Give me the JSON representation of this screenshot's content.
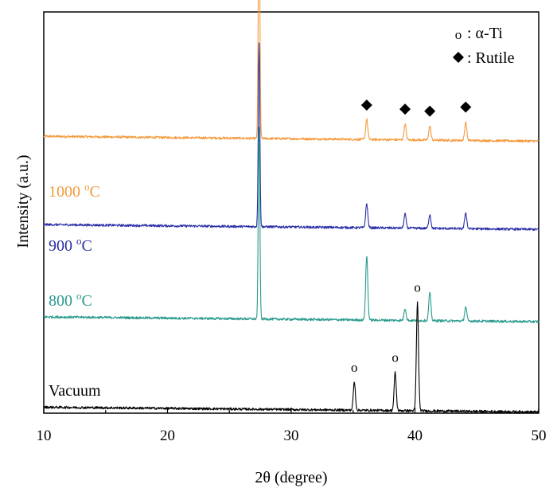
{
  "chart_data": {
    "type": "line",
    "xlabel": "2θ (degree)",
    "ylabel": "Intensity (a.u.)",
    "xlim": [
      10,
      50
    ],
    "xticks": [
      "10",
      "20",
      "30",
      "40",
      "50"
    ],
    "grid": false,
    "legend": {
      "position": "top-right",
      "entries": [
        {
          "symbol": "o",
          "label": ": α-Ti"
        },
        {
          "symbol": "diamond",
          "label": ": Rutile"
        }
      ]
    },
    "series": [
      {
        "name": "1000 oC",
        "label_main": "1000 ",
        "label_sup": "o",
        "label_unit": "C",
        "color": "#F39A3C",
        "baseline": 0.69,
        "peaks": [
          {
            "x": 27.4,
            "height": 0.6,
            "marker": "diamond"
          },
          {
            "x": 36.1,
            "height": 0.05,
            "marker": "diamond"
          },
          {
            "x": 39.2,
            "height": 0.04,
            "marker": "diamond"
          },
          {
            "x": 41.2,
            "height": 0.035,
            "marker": "diamond"
          },
          {
            "x": 44.1,
            "height": 0.045,
            "marker": "diamond"
          }
        ]
      },
      {
        "name": "900 oC",
        "label_main": "900 ",
        "label_sup": "o",
        "label_unit": "C",
        "color": "#2B2FA6",
        "baseline": 0.47,
        "peaks": [
          {
            "x": 27.4,
            "height": 0.46
          },
          {
            "x": 36.1,
            "height": 0.06
          },
          {
            "x": 39.2,
            "height": 0.035
          },
          {
            "x": 41.2,
            "height": 0.035
          },
          {
            "x": 44.1,
            "height": 0.04
          }
        ]
      },
      {
        "name": "800 oC",
        "label_main": "800 ",
        "label_sup": "o",
        "label_unit": "C",
        "color": "#2A9A8E",
        "baseline": 0.24,
        "peaks": [
          {
            "x": 27.4,
            "height": 0.48
          },
          {
            "x": 36.1,
            "height": 0.16
          },
          {
            "x": 39.2,
            "height": 0.03
          },
          {
            "x": 41.2,
            "height": 0.07
          },
          {
            "x": 44.1,
            "height": 0.035
          }
        ]
      },
      {
        "name": "Vacuum",
        "label_main": "Vacuum",
        "label_sup": "",
        "label_unit": "",
        "color": "#000000",
        "baseline": 0.015,
        "peaks": [
          {
            "x": 35.1,
            "height": 0.07,
            "marker": "o"
          },
          {
            "x": 38.4,
            "height": 0.095,
            "marker": "o"
          },
          {
            "x": 40.2,
            "height": 0.27,
            "marker": "o"
          }
        ]
      }
    ]
  }
}
